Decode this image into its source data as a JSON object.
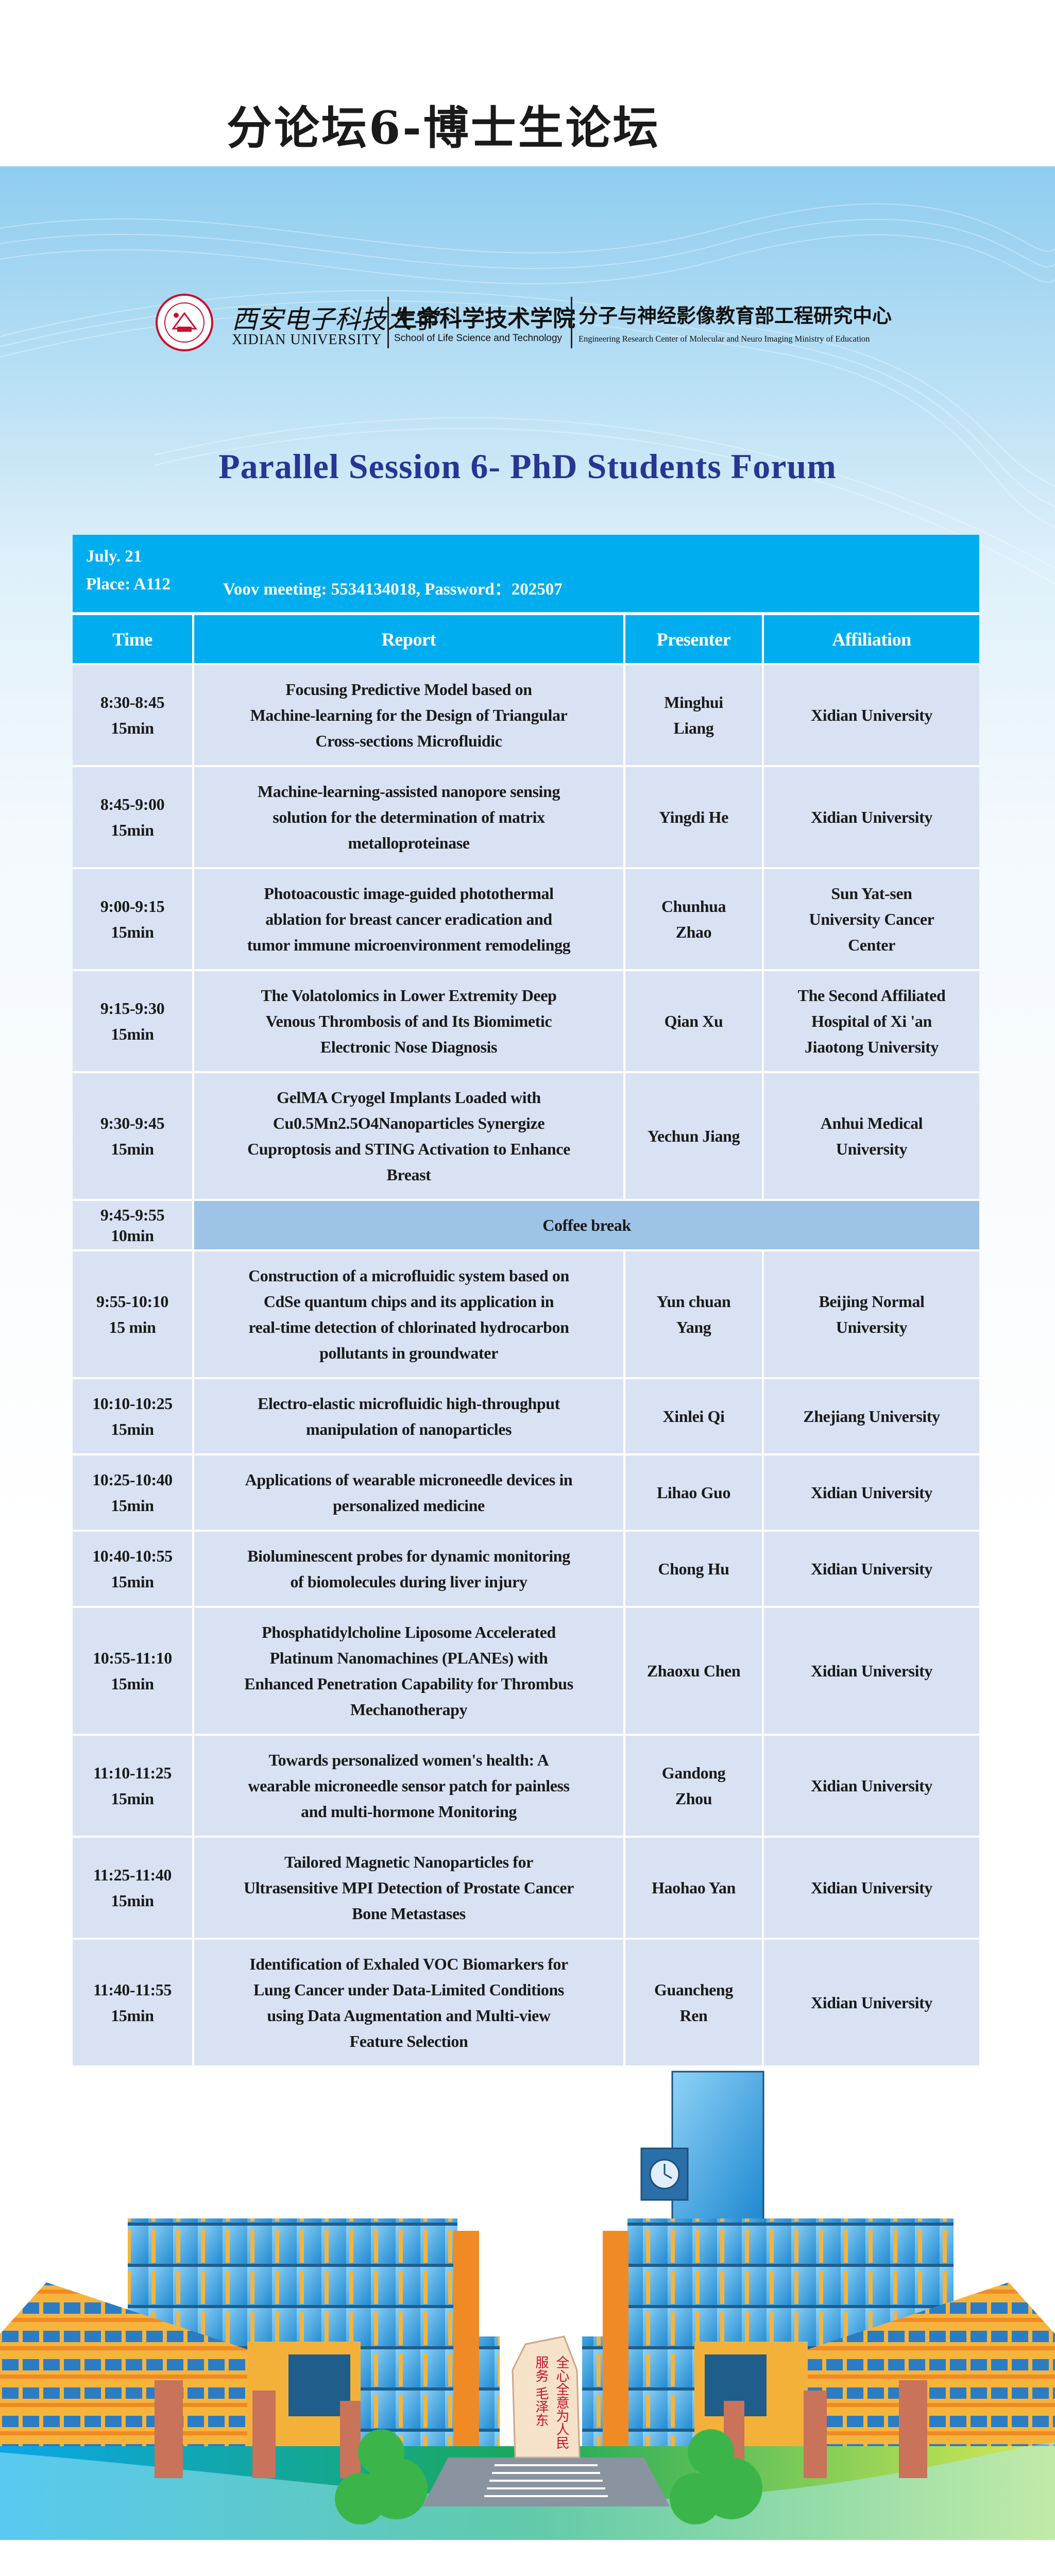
{
  "poster": {
    "cn_title": "分论坛6-博士生论坛",
    "logos": {
      "university_cn": "西安电子科技大学",
      "university_en": "XIDIAN UNIVERSITY",
      "school_cn": "生命科学技术学院",
      "school_en": "School of Life Science and Technology",
      "center_cn": "分子与神经影像教育部工程研究中心",
      "center_en": "Engineering Research Center of Molecular and Neuro Imaging Ministry of Education"
    },
    "heading": "Parallel Session 6- PhD Students Forum",
    "info": {
      "date": "July. 21",
      "place": "Place: A112",
      "meeting": "Voov meeting: 5534134018, Password：202507"
    },
    "colors": {
      "header_blue": "#00aeef",
      "row_bg": "#d9e2f3",
      "break_bg": "#9dc3e6",
      "heading": "#283593"
    }
  },
  "table": {
    "columns": [
      "Time",
      "Report",
      "Presenter",
      "Affiliation"
    ],
    "rows": [
      {
        "time": "8:30-8:45\n15min",
        "report": "Focusing Predictive Model based on\nMachine-learning for the Design of Triangular\nCross-sections Microfluidic",
        "presenter": "Minghui\nLiang",
        "affiliation": "Xidian University"
      },
      {
        "time": "8:45-9:00\n15min",
        "report": "Machine-learning-assisted nanopore sensing\nsolution for the determination of matrix\nmetalloproteinase",
        "presenter": "Yingdi He",
        "affiliation": "Xidian University"
      },
      {
        "time": "9:00-9:15\n15min",
        "report": "Photoacoustic image-guided photothermal\nablation for breast cancer eradication and\ntumor immune microenvironment remodelingg",
        "presenter": "Chunhua\nZhao",
        "affiliation": "Sun Yat-sen\nUniversity Cancer\nCenter"
      },
      {
        "time": "9:15-9:30\n15min",
        "report": "The Volatolomics in Lower Extremity Deep\nVenous Thrombosis of and Its Biomimetic\nElectronic Nose Diagnosis",
        "presenter": "Qian Xu",
        "affiliation": "The Second Affiliated\nHospital of Xi 'an\nJiaotong University"
      },
      {
        "time": "9:30-9:45\n15min",
        "report": "GelMA Cryogel Implants Loaded with\nCu0.5Mn2.5O4Nanoparticles Synergize\nCuproptosis and STING Activation to Enhance\nBreast",
        "presenter": "Yechun Jiang",
        "affiliation": "Anhui Medical\nUniversity"
      },
      {
        "time": "9:45-9:55\n10min",
        "break": "Coffee break"
      },
      {
        "time": "9:55-10:10\n15 min",
        "report": "Construction of a microfluidic system based on\nCdSe quantum chips and its application in\nreal-time detection of chlorinated hydrocarbon\npollutants in groundwater",
        "presenter": "Yun chuan\nYang",
        "affiliation": "Beijing Normal\nUniversity"
      },
      {
        "time": "10:10-10:25\n15min",
        "report": "Electro-elastic microfluidic high-throughput\nmanipulation of nanoparticles",
        "presenter": "Xinlei Qi",
        "affiliation": "Zhejiang University"
      },
      {
        "time": "10:25-10:40\n15min",
        "report": "Applications of wearable microneedle devices in\npersonalized medicine",
        "presenter": "Lihao Guo",
        "affiliation": "Xidian University"
      },
      {
        "time": "10:40-10:55\n15min",
        "report": "Bioluminescent probes for dynamic monitoring\nof biomolecules during liver injury",
        "presenter": "Chong Hu",
        "affiliation": "Xidian University"
      },
      {
        "time": "10:55-11:10\n15min",
        "report": "Phosphatidylcholine Liposome Accelerated\nPlatinum Nanomachines (PLANEs) with\nEnhanced Penetration Capability for Thrombus\nMechanotherapy",
        "presenter": "Zhaoxu Chen",
        "affiliation": "Xidian University"
      },
      {
        "time": "11:10-11:25\n15min",
        "report": "Towards personalized women's health: A\nwearable microneedle sensor patch for painless\nand multi-hormone Monitoring",
        "presenter": "Gandong\nZhou",
        "affiliation": "Xidian University"
      },
      {
        "time": "11:25-11:40\n15min",
        "report": "Tailored Magnetic Nanoparticles for\nUltrasensitive MPI Detection of Prostate Cancer\nBone Metastases",
        "presenter": "Haohao Yan",
        "affiliation": "Xidian University"
      },
      {
        "time": "11:40-11:55\n15min",
        "report": "Identification of Exhaled VOC Biomarkers for\nLung Cancer under Data-Limited Conditions\nusing Data Augmentation and Multi-view\nFeature Selection",
        "presenter": "Guancheng\nRen",
        "affiliation": "Xidian University"
      }
    ]
  },
  "illustration": {
    "monument_text": "全心全意为人民服务 毛泽东"
  }
}
